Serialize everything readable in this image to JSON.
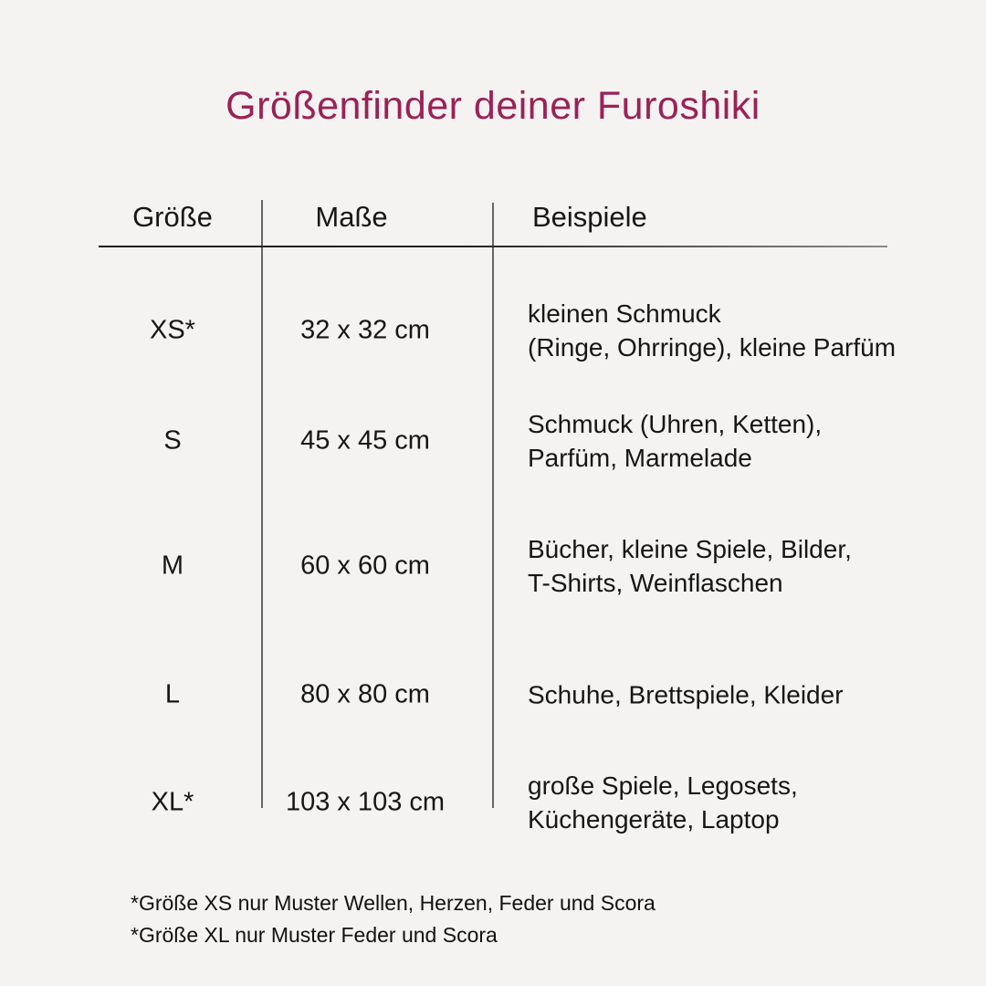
{
  "page": {
    "title": "Größenfinder deiner Furoshiki",
    "colors": {
      "background": "#f4f3f2",
      "title_accent": "#9b2156",
      "text": "#161616",
      "separator_line": "#666666"
    }
  },
  "table": {
    "headers": {
      "size": "Größe",
      "dimensions": "Maße",
      "examples": "Beispiele"
    },
    "rows": [
      {
        "size": "XS*",
        "dimensions": "32 x 32 cm",
        "examples": "kleinen Schmuck\n(Ringe, Ohrringe), kleine Parfüm"
      },
      {
        "size": "S",
        "dimensions": "45 x 45 cm",
        "examples": "Schmuck (Uhren, Ketten),\nParfüm, Marmelade"
      },
      {
        "size": "M",
        "dimensions": "60 x 60 cm",
        "examples": "Bücher, kleine Spiele, Bilder,\nT-Shirts, Weinflaschen"
      },
      {
        "size": "L",
        "dimensions": "80 x 80 cm",
        "examples": "Schuhe, Brettspiele, Kleider"
      },
      {
        "size": "XL*",
        "dimensions": "103 x 103 cm",
        "examples": "große Spiele, Legosets,\nKüchengeräte, Laptop"
      }
    ]
  },
  "footnotes": {
    "line1": "*Größe XS nur Muster Wellen, Herzen, Feder und Scora",
    "line2": "*Größe XL nur Muster Feder und Scora"
  }
}
